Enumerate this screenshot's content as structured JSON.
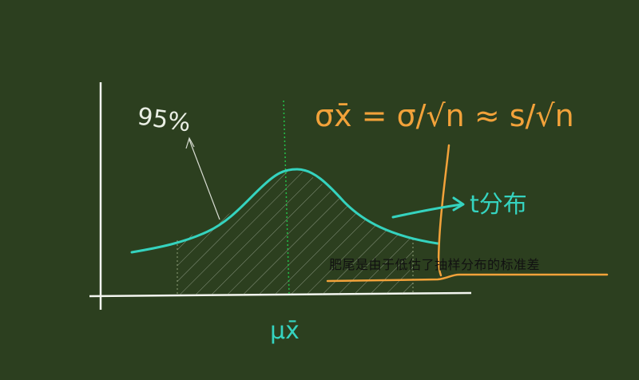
{
  "diagram": {
    "percent_label": "95%",
    "formula_sigma": "σx̄ = σ/√n ≈ s/√n",
    "t_label": "t分布",
    "mu_label": "μx̄",
    "note": "肥尾是由于低估了抽样分布的标准差"
  },
  "colors": {
    "board": "#2c3f1f",
    "chalk_white": "#e9eee4",
    "curve_cyan": "#35d3bf",
    "orange": "#f2a23a",
    "dotted_green": "#23c24a",
    "note_text": "#111111"
  }
}
